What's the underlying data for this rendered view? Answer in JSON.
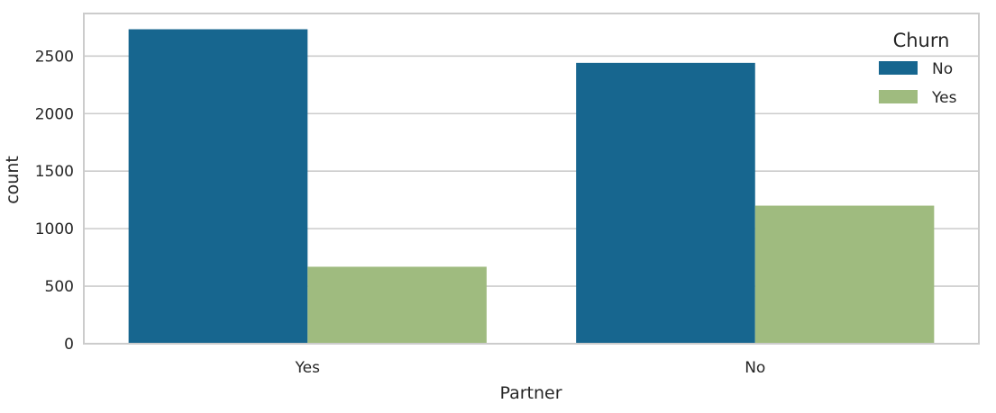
{
  "chart_data": {
    "type": "bar",
    "categories": [
      "Yes",
      "No"
    ],
    "series": [
      {
        "name": "No",
        "values": [
          2733,
          2441
        ],
        "color": "#17668f"
      },
      {
        "name": "Yes",
        "values": [
          669,
          1200
        ],
        "color": "#9fbb7f"
      }
    ],
    "title": "",
    "xlabel": "Partner",
    "ylabel": "count",
    "ylim": [
      0,
      2870
    ],
    "yticks": [
      0,
      500,
      1000,
      1500,
      2000,
      2500
    ],
    "grid": true,
    "legend": {
      "title": "Churn",
      "placement": "top-right"
    }
  }
}
